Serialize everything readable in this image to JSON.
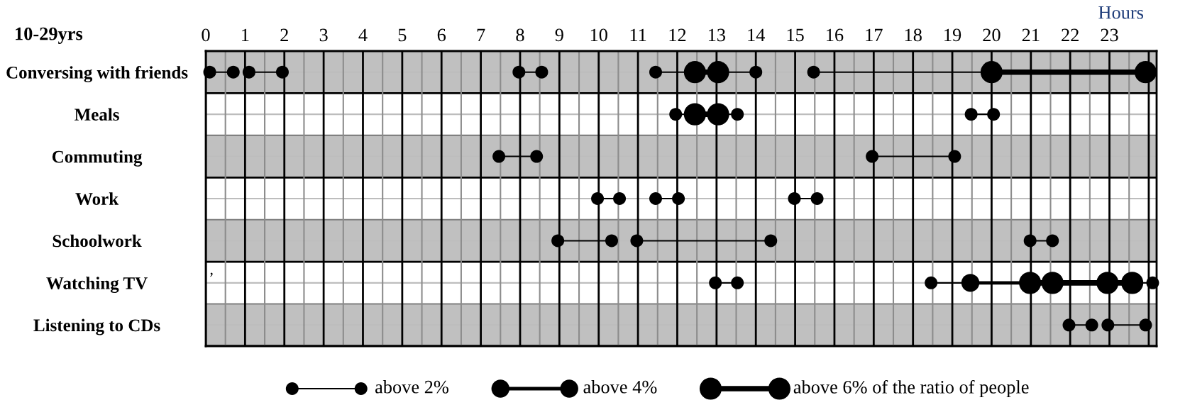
{
  "chart_data": {
    "type": "bubble",
    "orientation": "horizontal",
    "title": "10-29yrs",
    "xlabel": "Hours",
    "categories": [
      "Conversing with friends",
      "Meals",
      "Commuting",
      "Work",
      "Schoolwork",
      "Watching TV",
      "Listening to CDs"
    ],
    "xlim": [
      0,
      24.2
    ],
    "xticks": [
      0,
      1,
      2,
      3,
      4,
      5,
      6,
      7,
      8,
      9,
      10,
      11,
      12,
      13,
      14,
      15,
      16,
      17,
      18,
      19,
      20,
      21,
      22,
      23
    ],
    "grid": true,
    "color": "#000000",
    "size_legend": [
      {
        "value": 2,
        "label": "above 2%"
      },
      {
        "value": 4,
        "label": "above 4%"
      },
      {
        "value": 6,
        "label": "above 6% of the ratio of people"
      }
    ],
    "annotations": [
      "’"
    ],
    "series": [
      {
        "values": [
          0.1,
          11.96,
          7.46,
          9.97,
          8.96,
          12.97,
          21.97
        ],
        "sizes": [
          2,
          2,
          2,
          2,
          2,
          2,
          2
        ]
      },
      {
        "values": [
          0.7,
          12.45,
          8.42,
          10.53,
          10.33,
          13.53,
          22.55
        ],
        "sizes": [
          2,
          6,
          2,
          2,
          2,
          2,
          2
        ]
      },
      {
        "values": [
          null,
          13.04,
          null,
          null,
          null,
          null,
          null
        ],
        "sizes": [
          null,
          6,
          null,
          null,
          null,
          null,
          null
        ]
      },
      {
        "values": [
          1.1,
          13.53,
          16.96,
          11.45,
          10.97,
          18.46,
          22.96
        ],
        "sizes": [
          2,
          2,
          2,
          2,
          2,
          2,
          2
        ]
      },
      {
        "values": [
          1.95,
          null,
          19.06,
          12.03,
          14.38,
          19.46,
          23.92
        ],
        "sizes": [
          2,
          null,
          2,
          2,
          2,
          4,
          2
        ]
      },
      {
        "values": [
          null,
          19.48,
          null,
          null,
          null,
          20.98,
          null
        ],
        "sizes": [
          null,
          2,
          null,
          null,
          null,
          6,
          null
        ]
      },
      {
        "values": [
          7.97,
          20.05,
          null,
          14.98,
          20.98,
          21.55,
          null
        ],
        "sizes": [
          2,
          2,
          null,
          2,
          2,
          6,
          null
        ]
      },
      {
        "values": [
          8.55,
          null,
          null,
          15.56,
          21.55,
          22.95,
          null
        ],
        "sizes": [
          2,
          null,
          null,
          2,
          2,
          6,
          null
        ]
      },
      {
        "values": [
          null,
          null,
          null,
          null,
          null,
          23.58,
          null
        ],
        "sizes": [
          null,
          null,
          null,
          null,
          null,
          6,
          null
        ]
      },
      {
        "values": [
          11.45,
          null,
          null,
          null,
          null,
          24.1,
          null
        ],
        "sizes": [
          2,
          null,
          null,
          null,
          null,
          2,
          null
        ]
      },
      {
        "values": [
          12.45,
          null,
          null,
          null,
          null,
          null,
          null
        ],
        "sizes": [
          6,
          null,
          null,
          null,
          null,
          null,
          null
        ]
      },
      {
        "values": [
          13.04,
          null,
          null,
          null,
          null,
          null,
          null
        ],
        "sizes": [
          6,
          null,
          null,
          null,
          null,
          null,
          null
        ]
      },
      {
        "values": [
          14.0,
          null,
          null,
          null,
          null,
          null,
          null
        ],
        "sizes": [
          2,
          null,
          null,
          null,
          null,
          null,
          null
        ]
      },
      {
        "values": [
          null,
          null,
          null,
          null,
          null,
          null,
          null
        ],
        "sizes": [
          null,
          null,
          null,
          null,
          null,
          null,
          null
        ]
      },
      {
        "values": [
          15.47,
          null,
          null,
          null,
          null,
          null,
          null
        ],
        "sizes": [
          2,
          null,
          null,
          null,
          null,
          null,
          null
        ]
      },
      {
        "values": [
          20.0,
          null,
          null,
          null,
          null,
          null,
          null
        ],
        "sizes": [
          6,
          null,
          null,
          null,
          null,
          null,
          null
        ]
      },
      {
        "values": [
          23.92,
          null,
          null,
          null,
          null,
          null,
          null
        ],
        "sizes": [
          6,
          null,
          null,
          null,
          null,
          null,
          null
        ]
      }
    ]
  }
}
